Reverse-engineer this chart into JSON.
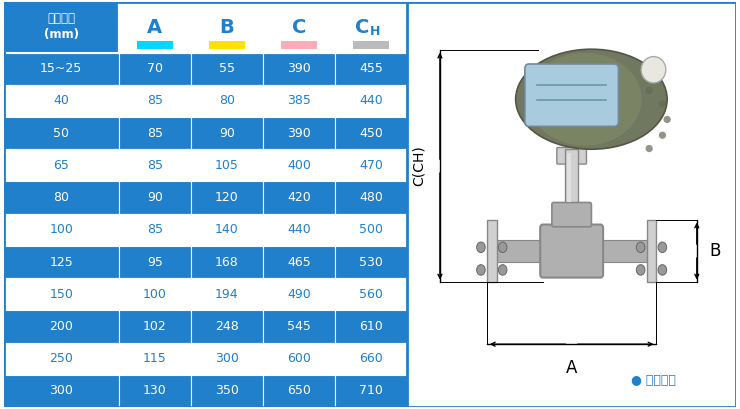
{
  "col_header_first": "仪表口径\n(mm)",
  "col_headers": [
    "A",
    "B",
    "C",
    "CH"
  ],
  "col_underline_colors": [
    "#00D8FF",
    "#FFE000",
    "#FFAABB",
    "#BBBBBB"
  ],
  "rows": [
    [
      "15~25",
      "70",
      "55",
      "390",
      "455"
    ],
    [
      "40",
      "85",
      "80",
      "385",
      "440"
    ],
    [
      "50",
      "85",
      "90",
      "390",
      "450"
    ],
    [
      "65",
      "85",
      "105",
      "400",
      "470"
    ],
    [
      "80",
      "90",
      "120",
      "420",
      "480"
    ],
    [
      "100",
      "85",
      "140",
      "440",
      "500"
    ],
    [
      "125",
      "95",
      "168",
      "465",
      "530"
    ],
    [
      "150",
      "100",
      "194",
      "490",
      "560"
    ],
    [
      "200",
      "102",
      "248",
      "545",
      "610"
    ],
    [
      "250",
      "115",
      "300",
      "600",
      "660"
    ],
    [
      "300",
      "130",
      "350",
      "650",
      "710"
    ]
  ],
  "blue_row_indices": [
    0,
    2,
    4,
    6,
    8,
    10
  ],
  "bg_blue": "#2080CC",
  "bg_white": "#FFFFFF",
  "text_white": "#FFFFFF",
  "text_blue": "#2080CC",
  "note_text": "● 常规仪表",
  "note_color": "#2080CC",
  "device_color": "#707860",
  "device_dark": "#555545",
  "metal_light": "#D0D0D0",
  "metal_mid": "#B0B0B0",
  "metal_dark": "#888888",
  "lcd_color": "#A8CCDD",
  "lcd_line_color": "#6699AA"
}
